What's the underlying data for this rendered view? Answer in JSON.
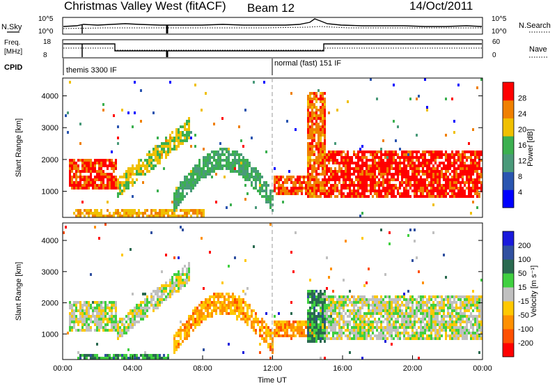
{
  "header": {
    "title": "Christmas Valley West (fitACF)",
    "beam": "Beam 12",
    "date": "14/Oct/2011"
  },
  "status_panels": {
    "sky_label": "N.Sky",
    "search_label": "N.Search",
    "sky_ticks": [
      "10^5",
      "10^0"
    ],
    "search_ticks": [
      "10^5",
      "10^0"
    ],
    "freq_label_line1": "Freq.",
    "freq_label_line2": "[MHz]",
    "freq_ticks": [
      "18",
      "8"
    ],
    "nave_label": "Nave",
    "nave_ticks": [
      "60",
      "0"
    ],
    "cpid_label": "CPID",
    "cpid_modes": [
      "themis 3300 IF",
      "normal (fast) 151 IF"
    ]
  },
  "colors": {
    "power_scale": [
      "#0000ff",
      "#2a55b0",
      "#4a9a7a",
      "#3cb050",
      "#f0c000",
      "#f08000",
      "#ff0000"
    ],
    "velocity_scale": [
      "#ff0000",
      "#ff5000",
      "#ff9000",
      "#ffc800",
      "#c0c0c0",
      "#40d040",
      "#2a6a50",
      "#3050a0",
      "#1a1adc"
    ],
    "ground_scatter": "#c0c0c0"
  },
  "chart_data": [
    {
      "type": "heatmap",
      "name": "power-panel",
      "ylabel": "Slant Range [km]",
      "ylim": [
        180,
        4560
      ],
      "yticks": [
        1000,
        2000,
        3000,
        4000
      ],
      "xlim": [
        0,
        24
      ],
      "colorbar_label": "Power [dB]",
      "colorbar_ticks": [
        4,
        8,
        12,
        16,
        20,
        24,
        28
      ],
      "colorbar_range": [
        0,
        30
      ],
      "features": [
        {
          "kind": "band",
          "t0": 0.3,
          "t1": 3.0,
          "r_lo": 1100,
          "r_hi": 2100,
          "level": 0.88
        },
        {
          "kind": "band",
          "t0": 0.5,
          "t1": 8.0,
          "r_lo": 250,
          "r_hi": 520,
          "level": 0.7
        },
        {
          "kind": "arc",
          "t0": 3.0,
          "t1": 7.2,
          "r_lo_start": 800,
          "r_lo_end": 2700,
          "width": 650,
          "level": 0.6
        },
        {
          "kind": "dome",
          "t0": 6.3,
          "t1": 12.0,
          "r_base": 1050,
          "r_peak": 2400,
          "width": 700,
          "level": 0.45
        },
        {
          "kind": "spike",
          "t0": 13.9,
          "t1": 15.0,
          "r_lo": 800,
          "r_hi": 4200,
          "level": 0.8
        },
        {
          "kind": "band",
          "t0": 14.8,
          "t1": 24.0,
          "r_lo": 850,
          "r_hi": 2300,
          "level": 0.92
        },
        {
          "kind": "band",
          "t0": 12.0,
          "t1": 14.5,
          "r_lo": 900,
          "r_hi": 1500,
          "level": 0.85
        }
      ]
    },
    {
      "type": "heatmap",
      "name": "velocity-panel",
      "xlabel": "Time UT",
      "ylabel": "Slant Range [km]",
      "ylim": [
        180,
        4560
      ],
      "yticks": [
        1000,
        2000,
        3000,
        4000
      ],
      "xlim": [
        0,
        24
      ],
      "xticks": [
        "00:00",
        "04:00",
        "08:00",
        "12:00",
        "16:00",
        "20:00",
        "00:00"
      ],
      "colorbar_label": "Velocity [m s⁻¹]",
      "colorbar_ticks": [
        200,
        100,
        50,
        15,
        -15,
        -50,
        -100,
        -200
      ],
      "features": [
        {
          "kind": "band",
          "t0": 0.3,
          "t1": 3.0,
          "r_lo": 1100,
          "r_hi": 2100,
          "level": 0.5
        },
        {
          "kind": "band",
          "t0": 0.8,
          "t1": 6.0,
          "r_lo": 200,
          "r_hi": 420,
          "level": 0.68
        },
        {
          "kind": "arc",
          "t0": 3.0,
          "t1": 7.2,
          "r_lo_start": 800,
          "r_lo_end": 2700,
          "width": 650,
          "level": 0.5
        },
        {
          "kind": "dome",
          "t0": 6.3,
          "t1": 12.0,
          "r_base": 1050,
          "r_peak": 2400,
          "width": 700,
          "level": 0.32
        },
        {
          "kind": "spike",
          "t0": 13.9,
          "t1": 15.0,
          "r_lo": 800,
          "r_hi": 2500,
          "level": 0.68
        },
        {
          "kind": "band",
          "t0": 14.8,
          "t1": 24.0,
          "r_lo": 850,
          "r_hi": 2300,
          "level": 0.5
        },
        {
          "kind": "band",
          "t0": 12.0,
          "t1": 14.5,
          "r_lo": 900,
          "r_hi": 1500,
          "level": 0.3
        }
      ]
    }
  ]
}
